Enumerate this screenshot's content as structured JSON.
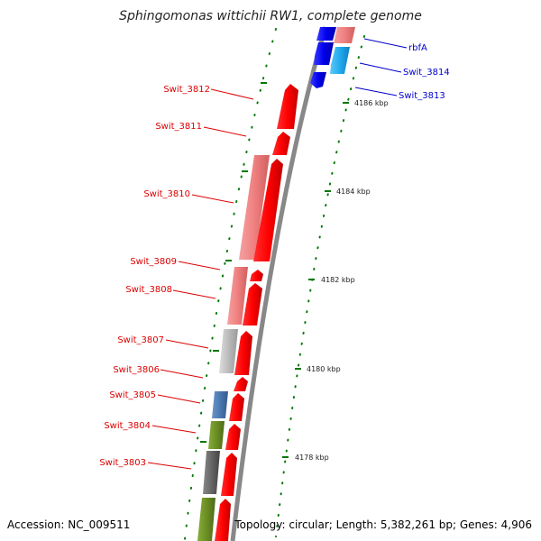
{
  "title": "Sphingomonas wittichii RW1, complete genome",
  "accession": "Accession: NC_009511",
  "topology": "Topology: circular; Length: 5,382,261 bp; Genes: 4,906",
  "colors": {
    "forward_cds": "#ff0000",
    "forward_cds_light": "#f08080",
    "reverse_cds": "#0000ee",
    "reverse_cds_light": "#22aaee",
    "backbone": "#888888",
    "tick": "#007700",
    "gray_gene": "#bbbbbb",
    "blue_gene": "#4a78b0",
    "olive_gene": "#6b8e23",
    "dark_gray_gene": "#666666"
  },
  "kbp_labels": [
    "4186 kbp",
    "4184 kbp",
    "4182 kbp",
    "4180 kbp",
    "4178 kbp"
  ],
  "left_genes": [
    "Swit_3812",
    "Swit_3811",
    "Swit_3810",
    "Swit_3809",
    "Swit_3808",
    "Swit_3807",
    "Swit_3806",
    "Swit_3805",
    "Swit_3804",
    "Swit_3803"
  ],
  "right_genes": [
    "rbfA",
    "Swit_3814",
    "Swit_3813"
  ]
}
